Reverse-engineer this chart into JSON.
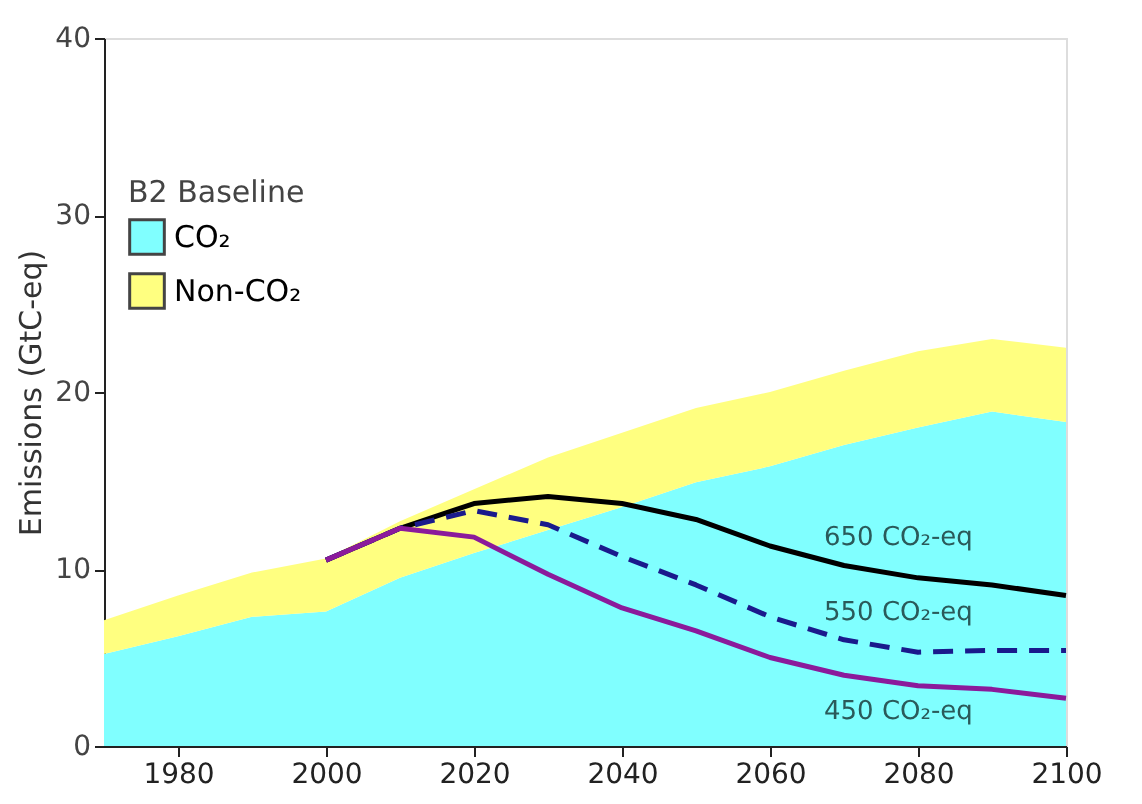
{
  "chart_data": {
    "type": "area",
    "ylabel": "Emissions (GtC-eq)",
    "legend_title": "B2 Baseline",
    "legend": "left",
    "grid": false,
    "stacked": true,
    "x": [
      1970,
      1980,
      1990,
      2000,
      2010,
      2020,
      2030,
      2040,
      2050,
      2060,
      2070,
      2080,
      2090,
      2100
    ],
    "xlim": [
      1970,
      2100
    ],
    "xticks": [
      1980,
      2000,
      2020,
      2040,
      2060,
      2080,
      2100
    ],
    "ylim": [
      0,
      40
    ],
    "yticks": [
      0,
      10,
      20,
      30,
      40
    ],
    "series": [
      {
        "name": "CO₂",
        "color": "#80ffff",
        "values": [
          5.2,
          6.2,
          7.3,
          7.6,
          9.5,
          10.9,
          12.2,
          13.5,
          14.9,
          15.8,
          17.0,
          18.0,
          18.9,
          18.3
        ]
      },
      {
        "name": "Non-CO₂",
        "color": "#ffff80",
        "values": [
          1.9,
          2.3,
          2.5,
          3.0,
          3.2,
          3.6,
          4.1,
          4.2,
          4.2,
          4.2,
          4.2,
          4.3,
          4.1,
          4.2
        ]
      },
      {
        "name": "650 CO₂-eq",
        "type": "line",
        "color": "#000000",
        "line_style": "solid",
        "x": [
          2000,
          2010,
          2020,
          2030,
          2040,
          2050,
          2060,
          2070,
          2080,
          2090,
          2100
        ],
        "values": [
          10.5,
          12.3,
          13.7,
          14.1,
          13.7,
          12.8,
          11.3,
          10.2,
          9.5,
          9.1,
          8.5
        ]
      },
      {
        "name": "550 CO₂-eq",
        "type": "line",
        "color": "#1a1a8c",
        "line_style": "dashed",
        "x": [
          2000,
          2010,
          2020,
          2030,
          2040,
          2050,
          2060,
          2070,
          2080,
          2090,
          2100
        ],
        "values": [
          10.5,
          12.3,
          13.3,
          12.5,
          10.7,
          9.1,
          7.3,
          6.0,
          5.3,
          5.4,
          5.4
        ]
      },
      {
        "name": "450 CO₂-eq",
        "type": "line",
        "color": "#8b1a9b",
        "line_style": "solid",
        "x": [
          2000,
          2010,
          2020,
          2030,
          2040,
          2050,
          2060,
          2070,
          2080,
          2090,
          2100
        ],
        "values": [
          10.5,
          12.3,
          11.8,
          9.7,
          7.8,
          6.5,
          5.0,
          4.0,
          3.4,
          3.2,
          2.7
        ]
      }
    ]
  }
}
